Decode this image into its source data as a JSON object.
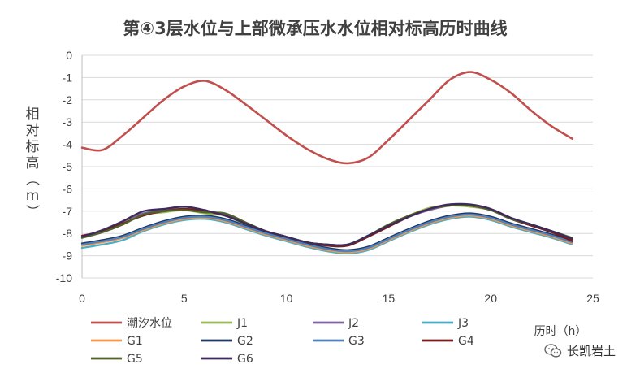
{
  "chart_data": {
    "type": "line",
    "title": "第④3层水位与上部微承压水水位相对标高历时曲线",
    "xlabel": "历时（h）",
    "ylabel": "相对标高（m）",
    "xlim": [
      0,
      25
    ],
    "ylim": [
      -10,
      0
    ],
    "xticks": [
      "0",
      "5",
      "10",
      "15",
      "20",
      "25"
    ],
    "yticks": [
      "0",
      "-1",
      "-2",
      "-3",
      "-4",
      "-5",
      "-6",
      "-7",
      "-8",
      "-9",
      "-10"
    ],
    "grid": "horizontal",
    "legend_position": "bottom",
    "series": [
      {
        "name": "潮汐水位",
        "color": "#c0504d",
        "x": [
          0,
          1,
          2,
          3,
          4,
          5,
          6,
          7,
          8,
          9,
          10,
          11,
          12,
          13,
          14,
          15,
          16,
          17,
          18,
          19,
          20,
          21,
          22,
          23,
          24
        ],
        "y": [
          -4.15,
          -4.25,
          -3.6,
          -2.8,
          -2.0,
          -1.4,
          -1.15,
          -1.55,
          -2.2,
          -2.9,
          -3.6,
          -4.2,
          -4.65,
          -4.85,
          -4.6,
          -3.8,
          -2.9,
          -2.0,
          -1.1,
          -0.75,
          -1.1,
          -1.7,
          -2.5,
          -3.2,
          -3.75
        ]
      },
      {
        "name": "J1",
        "color": "#9bbb59",
        "x": [
          0,
          1,
          2,
          3,
          4,
          5,
          6,
          7,
          8,
          9,
          10,
          11,
          12,
          13,
          14,
          15,
          16,
          17,
          18,
          19,
          20,
          21,
          22,
          23,
          24
        ],
        "y": [
          -8.2,
          -7.9,
          -7.5,
          -7.15,
          -7.05,
          -6.95,
          -7.1,
          -7.2,
          -7.6,
          -7.95,
          -8.15,
          -8.4,
          -8.5,
          -8.5,
          -8.1,
          -7.6,
          -7.2,
          -6.85,
          -6.75,
          -6.8,
          -6.95,
          -7.35,
          -7.65,
          -7.95,
          -8.25
        ]
      },
      {
        "name": "J2",
        "color": "#8064a2",
        "x": [
          0,
          1,
          2,
          3,
          4,
          5,
          6,
          7,
          8,
          9,
          10,
          11,
          12,
          13,
          14,
          15,
          16,
          17,
          18,
          19,
          20,
          21,
          22,
          23,
          24
        ],
        "y": [
          -8.15,
          -7.85,
          -7.45,
          -7.1,
          -6.95,
          -6.9,
          -7.0,
          -7.15,
          -7.55,
          -7.9,
          -8.15,
          -8.4,
          -8.5,
          -8.5,
          -8.1,
          -7.65,
          -7.25,
          -6.95,
          -6.75,
          -6.75,
          -6.95,
          -7.35,
          -7.65,
          -7.95,
          -8.3
        ]
      },
      {
        "name": "J3",
        "color": "#4bacc6",
        "x": [
          0,
          1,
          2,
          3,
          4,
          5,
          6,
          7,
          8,
          9,
          10,
          11,
          12,
          13,
          14,
          15,
          16,
          17,
          18,
          19,
          20,
          21,
          22,
          23,
          24
        ],
        "y": [
          -8.65,
          -8.5,
          -8.3,
          -7.9,
          -7.6,
          -7.4,
          -7.35,
          -7.5,
          -7.8,
          -8.1,
          -8.35,
          -8.6,
          -8.8,
          -8.9,
          -8.75,
          -8.35,
          -7.95,
          -7.6,
          -7.35,
          -7.25,
          -7.4,
          -7.7,
          -7.95,
          -8.2,
          -8.5
        ]
      },
      {
        "name": "G1",
        "color": "#f79646",
        "x": [
          0,
          1,
          2,
          3,
          4,
          5,
          6,
          7,
          8,
          9,
          10,
          11,
          12,
          13,
          14,
          15,
          16,
          17,
          18,
          19,
          20,
          21,
          22,
          23,
          24
        ],
        "y": [
          -8.55,
          -8.4,
          -8.2,
          -7.85,
          -7.55,
          -7.35,
          -7.3,
          -7.45,
          -7.75,
          -8.05,
          -8.3,
          -8.55,
          -8.75,
          -8.85,
          -8.7,
          -8.3,
          -7.9,
          -7.55,
          -7.3,
          -7.2,
          -7.35,
          -7.65,
          -7.9,
          -8.15,
          -8.45
        ]
      },
      {
        "name": "G2",
        "color": "#1f3864",
        "x": [
          0,
          1,
          2,
          3,
          4,
          5,
          6,
          7,
          8,
          9,
          10,
          11,
          12,
          13,
          14,
          15,
          16,
          17,
          18,
          19,
          20,
          21,
          22,
          23,
          24
        ],
        "y": [
          -8.45,
          -8.3,
          -8.1,
          -7.75,
          -7.45,
          -7.25,
          -7.2,
          -7.35,
          -7.65,
          -7.95,
          -8.2,
          -8.45,
          -8.65,
          -8.75,
          -8.6,
          -8.2,
          -7.8,
          -7.45,
          -7.2,
          -7.1,
          -7.25,
          -7.55,
          -7.8,
          -8.05,
          -8.35
        ]
      },
      {
        "name": "G3",
        "color": "#4f81bd",
        "x": [
          0,
          1,
          2,
          3,
          4,
          5,
          6,
          7,
          8,
          9,
          10,
          11,
          12,
          13,
          14,
          15,
          16,
          17,
          18,
          19,
          20,
          21,
          22,
          23,
          24
        ],
        "y": [
          -8.5,
          -8.35,
          -8.15,
          -7.8,
          -7.5,
          -7.3,
          -7.25,
          -7.4,
          -7.7,
          -8.0,
          -8.25,
          -8.5,
          -8.7,
          -8.8,
          -8.65,
          -8.25,
          -7.85,
          -7.5,
          -7.25,
          -7.15,
          -7.3,
          -7.6,
          -7.85,
          -8.1,
          -8.4
        ]
      },
      {
        "name": "G4",
        "color": "#7b1c1c",
        "x": [
          0,
          1,
          2,
          3,
          4,
          5,
          6,
          7,
          8,
          9,
          10,
          11,
          12,
          13,
          14,
          15,
          16,
          17,
          18,
          19,
          20,
          21,
          22,
          23,
          24
        ],
        "y": [
          -8.1,
          -7.9,
          -7.55,
          -7.2,
          -7.0,
          -6.9,
          -7.0,
          -7.2,
          -7.55,
          -7.9,
          -8.15,
          -8.4,
          -8.55,
          -8.55,
          -8.15,
          -7.7,
          -7.25,
          -6.9,
          -6.7,
          -6.75,
          -6.95,
          -7.35,
          -7.65,
          -7.95,
          -8.35
        ]
      },
      {
        "name": "G5",
        "color": "#4f6228",
        "x": [
          0,
          1,
          2,
          3,
          4,
          5,
          6,
          7,
          8,
          9,
          10,
          11,
          12,
          13,
          14,
          15,
          16,
          17,
          18,
          19,
          20,
          21,
          22,
          23,
          24
        ],
        "y": [
          -8.2,
          -7.95,
          -7.6,
          -7.15,
          -7.0,
          -6.95,
          -7.05,
          -7.1,
          -7.5,
          -7.9,
          -8.15,
          -8.4,
          -8.5,
          -8.5,
          -8.1,
          -7.6,
          -7.2,
          -6.9,
          -6.75,
          -6.75,
          -6.95,
          -7.35,
          -7.6,
          -7.9,
          -8.2
        ]
      },
      {
        "name": "G6",
        "color": "#3e2a5c",
        "x": [
          0,
          1,
          2,
          3,
          4,
          5,
          6,
          7,
          8,
          9,
          10,
          11,
          12,
          13,
          14,
          15,
          16,
          17,
          18,
          19,
          20,
          21,
          22,
          23,
          24
        ],
        "y": [
          -8.15,
          -7.85,
          -7.45,
          -7.0,
          -6.9,
          -6.8,
          -6.95,
          -7.2,
          -7.55,
          -7.9,
          -8.15,
          -8.4,
          -8.5,
          -8.5,
          -8.1,
          -7.65,
          -7.25,
          -6.9,
          -6.7,
          -6.7,
          -6.9,
          -7.3,
          -7.6,
          -7.9,
          -8.25
        ]
      }
    ]
  },
  "watermark": {
    "text": "长凯岩土",
    "icon": "wechat-icon"
  }
}
